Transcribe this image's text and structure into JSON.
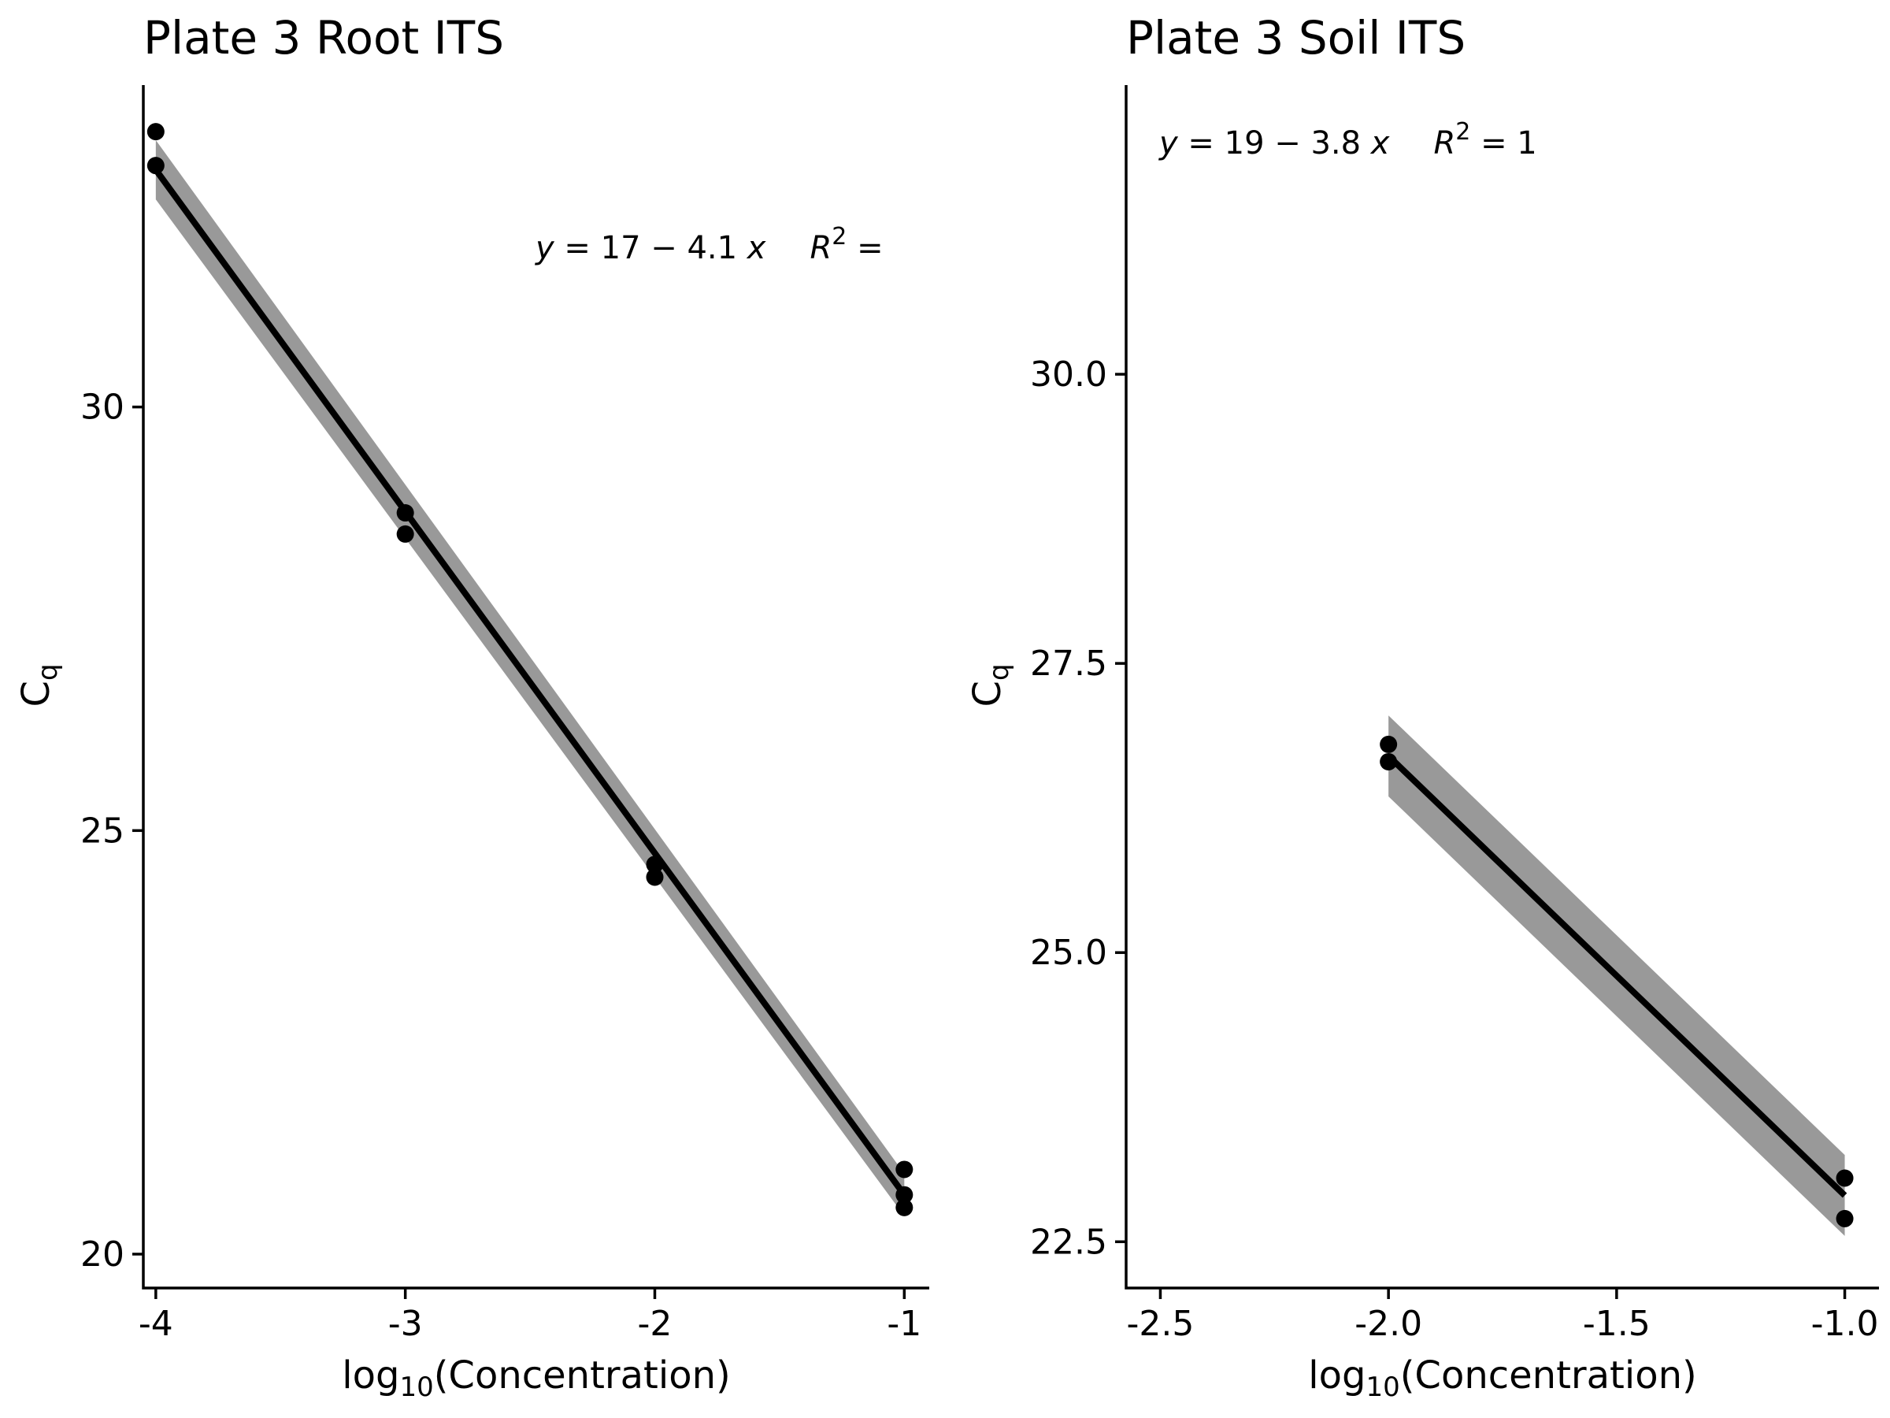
{
  "chart_data": [
    {
      "type": "scatter",
      "title": "Plate 3 Root ITS",
      "xlabel_prefix": "log",
      "xlabel_sub": "10",
      "xlabel_suffix": "(Concentration)",
      "ylabel_main": "C",
      "ylabel_sub": "q",
      "xlim": [
        -4.05,
        -0.9
      ],
      "ylim": [
        19.6,
        33.8
      ],
      "xticks": [
        -4,
        -3,
        -2,
        -1
      ],
      "xtick_labels": [
        "-4",
        "-3",
        "-2",
        "-1"
      ],
      "yticks": [
        20,
        25,
        30
      ],
      "ytick_labels": [
        "20",
        "25",
        "30"
      ],
      "points": [
        {
          "x": -4,
          "y": 33.25
        },
        {
          "x": -4,
          "y": 32.85
        },
        {
          "x": -3,
          "y": 28.75
        },
        {
          "x": -3,
          "y": 28.5
        },
        {
          "x": -2,
          "y": 24.6
        },
        {
          "x": -2,
          "y": 24.45
        },
        {
          "x": -1,
          "y": 21.0
        },
        {
          "x": -1,
          "y": 20.7
        },
        {
          "x": -1,
          "y": 20.55
        }
      ],
      "fit": {
        "x": [
          -4,
          -1
        ],
        "y": [
          32.8,
          20.7
        ],
        "band_halfwidth": [
          0.35,
          0.25
        ]
      },
      "equation": {
        "lhs": "y",
        "rhs": " = 17 − 4.1 ",
        "var": "x",
        "r2_label": "R",
        "r2_sup": "2",
        "r2_eq": " ="
      }
    },
    {
      "type": "scatter",
      "title": "Plate 3 Soil ITS",
      "xlabel_prefix": "log",
      "xlabel_sub": "10",
      "xlabel_suffix": "(Concentration)",
      "ylabel_main": "C",
      "ylabel_sub": "q",
      "xlim": [
        -2.575,
        -0.925
      ],
      "ylim": [
        22.1,
        32.5
      ],
      "xticks": [
        -2.5,
        -2.0,
        -1.5,
        -1.0
      ],
      "xtick_labels": [
        "-2.5",
        "-2.0",
        "-1.5",
        "-1.0"
      ],
      "yticks": [
        22.5,
        25.0,
        27.5,
        30.0
      ],
      "ytick_labels": [
        "22.5",
        "25.0",
        "27.5",
        "30.0"
      ],
      "points": [
        {
          "x": -2,
          "y": 26.8
        },
        {
          "x": -2,
          "y": 26.65
        },
        {
          "x": -1,
          "y": 23.05
        },
        {
          "x": -1,
          "y": 22.7
        }
      ],
      "fit": {
        "x": [
          -2,
          -1
        ],
        "y": [
          26.7,
          22.9
        ],
        "band_halfwidth": [
          0.35,
          0.35
        ]
      },
      "equation": {
        "lhs": "y",
        "rhs": " = 19 − 3.8 ",
        "var": "x",
        "r2_label": "R",
        "r2_sup": "2",
        "r2_eq": " = 1"
      }
    }
  ]
}
